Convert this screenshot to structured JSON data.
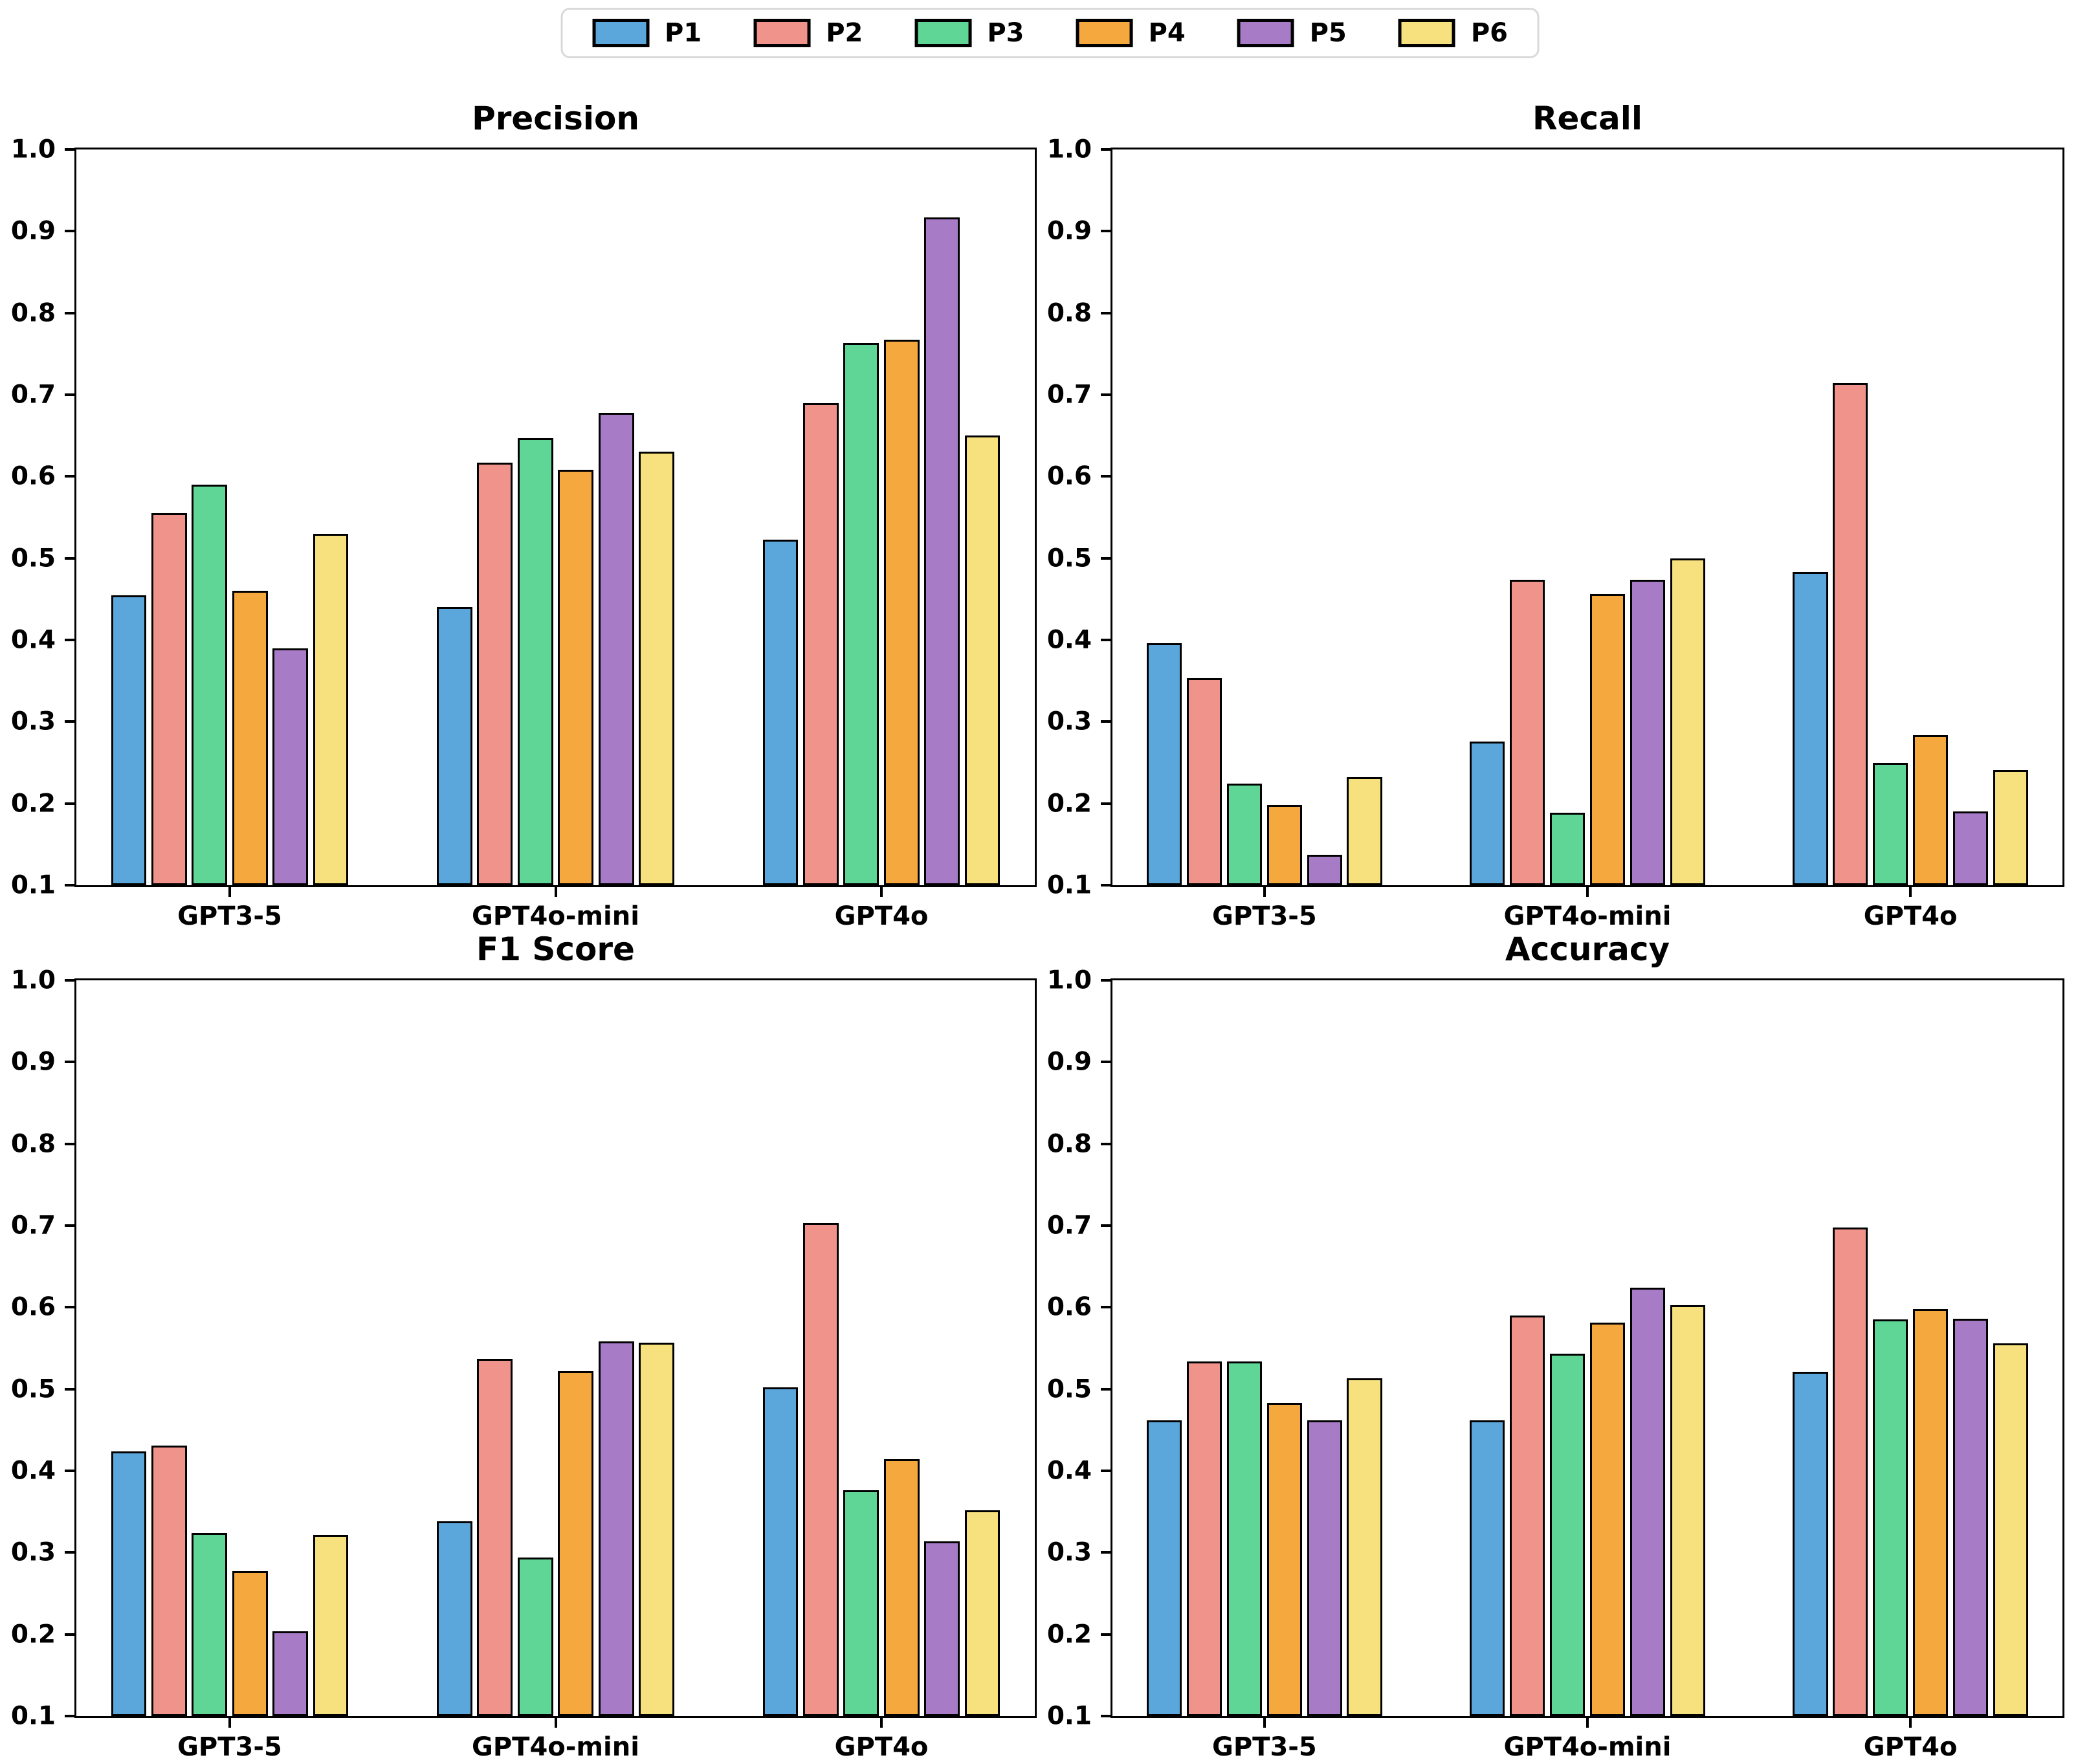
{
  "figure": {
    "background": "#ffffff",
    "text_color": "#000000",
    "bar_edge_color": "#000000",
    "legend": {
      "position": "top-center",
      "items": [
        {
          "label": "P1",
          "color": "#5BA7DC"
        },
        {
          "label": "P2",
          "color": "#F0938A"
        },
        {
          "label": "P3",
          "color": "#5FD695"
        },
        {
          "label": "P4",
          "color": "#F5A83E"
        },
        {
          "label": "P5",
          "color": "#A87BC7"
        },
        {
          "label": "P6",
          "color": "#F7E07E"
        }
      ]
    }
  },
  "chart_data": [
    {
      "type": "bar",
      "title": "Precision",
      "slug": "precision",
      "categories": [
        "GPT3-5",
        "GPT4o-mini",
        "GPT4o"
      ],
      "series": [
        {
          "name": "P1",
          "color": "#5BA7DC",
          "values": [
            0.455,
            0.44,
            0.523
          ]
        },
        {
          "name": "P2",
          "color": "#F0938A",
          "values": [
            0.555,
            0.617,
            0.69
          ]
        },
        {
          "name": "P3",
          "color": "#5FD695",
          "values": [
            0.59,
            0.647,
            0.763
          ]
        },
        {
          "name": "P4",
          "color": "#F5A83E",
          "values": [
            0.46,
            0.608,
            0.767
          ]
        },
        {
          "name": "P5",
          "color": "#A87BC7",
          "values": [
            0.39,
            0.678,
            0.917
          ]
        },
        {
          "name": "P6",
          "color": "#F7E07E",
          "values": [
            0.53,
            0.63,
            0.65
          ]
        }
      ],
      "xlabel": "",
      "ylabel": "",
      "ylim": [
        0.1,
        1.0
      ],
      "yticks": [
        0.1,
        0.2,
        0.3,
        0.4,
        0.5,
        0.6,
        0.7,
        0.8,
        0.9,
        1.0
      ],
      "ytick_labels": [
        "0.1",
        "0.2",
        "0.3",
        "0.4",
        "0.5",
        "0.6",
        "0.7",
        "0.8",
        "0.9",
        "1.0"
      ],
      "grid": false,
      "legend_position": "figure-top"
    },
    {
      "type": "bar",
      "title": "Recall",
      "slug": "recall",
      "categories": [
        "GPT3-5",
        "GPT4o-mini",
        "GPT4o"
      ],
      "series": [
        {
          "name": "P1",
          "color": "#5BA7DC",
          "values": [
            0.396,
            0.276,
            0.483
          ]
        },
        {
          "name": "P2",
          "color": "#F0938A",
          "values": [
            0.353,
            0.474,
            0.714
          ]
        },
        {
          "name": "P3",
          "color": "#5FD695",
          "values": [
            0.224,
            0.189,
            0.25
          ]
        },
        {
          "name": "P4",
          "color": "#F5A83E",
          "values": [
            0.198,
            0.456,
            0.284
          ]
        },
        {
          "name": "P5",
          "color": "#A87BC7",
          "values": [
            0.137,
            0.474,
            0.19
          ]
        },
        {
          "name": "P6",
          "color": "#F7E07E",
          "values": [
            0.232,
            0.5,
            0.241
          ]
        }
      ],
      "xlabel": "",
      "ylabel": "",
      "ylim": [
        0.1,
        1.0
      ],
      "yticks": [
        0.1,
        0.2,
        0.3,
        0.4,
        0.5,
        0.6,
        0.7,
        0.8,
        0.9,
        1.0
      ],
      "ytick_labels": [
        "0.1",
        "0.2",
        "0.3",
        "0.4",
        "0.5",
        "0.6",
        "0.7",
        "0.8",
        "0.9",
        "1.0"
      ],
      "grid": false,
      "legend_position": "figure-top"
    },
    {
      "type": "bar",
      "title": "F1 Score",
      "slug": "f1-score",
      "categories": [
        "GPT3-5",
        "GPT4o-mini",
        "GPT4o"
      ],
      "series": [
        {
          "name": "P1",
          "color": "#5BA7DC",
          "values": [
            0.424,
            0.338,
            0.502
          ]
        },
        {
          "name": "P2",
          "color": "#F0938A",
          "values": [
            0.431,
            0.537,
            0.703
          ]
        },
        {
          "name": "P3",
          "color": "#5FD695",
          "values": [
            0.324,
            0.294,
            0.376
          ]
        },
        {
          "name": "P4",
          "color": "#F5A83E",
          "values": [
            0.277,
            0.522,
            0.414
          ]
        },
        {
          "name": "P5",
          "color": "#A87BC7",
          "values": [
            0.204,
            0.558,
            0.314
          ]
        },
        {
          "name": "P6",
          "color": "#F7E07E",
          "values": [
            0.322,
            0.557,
            0.352
          ]
        }
      ],
      "xlabel": "",
      "ylabel": "",
      "ylim": [
        0.1,
        1.0
      ],
      "yticks": [
        0.1,
        0.2,
        0.3,
        0.4,
        0.5,
        0.6,
        0.7,
        0.8,
        0.9,
        1.0
      ],
      "ytick_labels": [
        "0.1",
        "0.2",
        "0.3",
        "0.4",
        "0.5",
        "0.6",
        "0.7",
        "0.8",
        "0.9",
        "1.0"
      ],
      "grid": false,
      "legend_position": "figure-top"
    },
    {
      "type": "bar",
      "title": "Accuracy",
      "slug": "accuracy",
      "categories": [
        "GPT3-5",
        "GPT4o-mini",
        "GPT4o"
      ],
      "series": [
        {
          "name": "P1",
          "color": "#5BA7DC",
          "values": [
            0.462,
            0.462,
            0.521
          ]
        },
        {
          "name": "P2",
          "color": "#F0938A",
          "values": [
            0.534,
            0.59,
            0.698
          ]
        },
        {
          "name": "P3",
          "color": "#5FD695",
          "values": [
            0.534,
            0.543,
            0.585
          ]
        },
        {
          "name": "P4",
          "color": "#F5A83E",
          "values": [
            0.483,
            0.581,
            0.598
          ]
        },
        {
          "name": "P5",
          "color": "#A87BC7",
          "values": [
            0.462,
            0.624,
            0.586
          ]
        },
        {
          "name": "P6",
          "color": "#F7E07E",
          "values": [
            0.513,
            0.603,
            0.556
          ]
        }
      ],
      "xlabel": "",
      "ylabel": "",
      "ylim": [
        0.1,
        1.0
      ],
      "yticks": [
        0.1,
        0.2,
        0.3,
        0.4,
        0.5,
        0.6,
        0.7,
        0.8,
        0.9,
        1.0
      ],
      "ytick_labels": [
        "0.1",
        "0.2",
        "0.3",
        "0.4",
        "0.5",
        "0.6",
        "0.7",
        "0.8",
        "0.9",
        "1.0"
      ],
      "grid": false,
      "legend_position": "figure-top"
    }
  ]
}
